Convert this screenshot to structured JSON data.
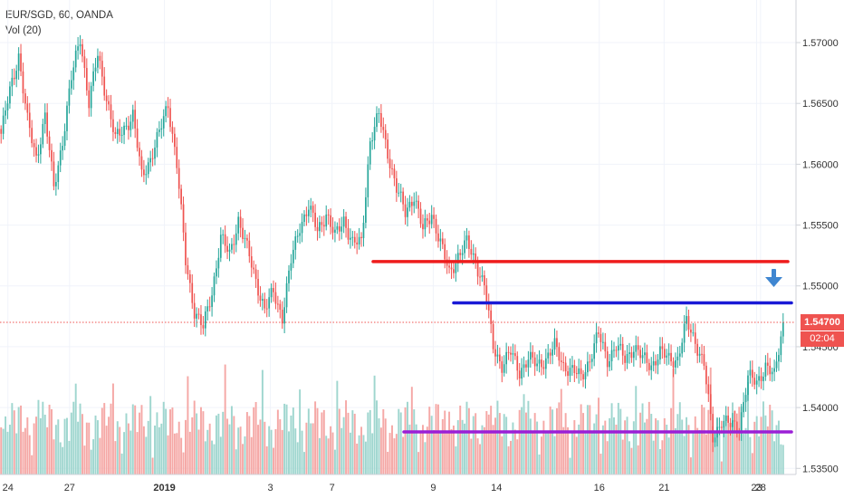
{
  "legend": {
    "symbol_line": "EUR/SGD, 60, OANDA",
    "volume_line": "Vol (20)"
  },
  "price_label": "1.54700",
  "countdown_label": "02:04",
  "colors": {
    "up": "#26a69a",
    "down": "#ef5350",
    "vol_up": "#9fd6cf",
    "vol_down": "#f5a8a6",
    "resistance_red": "#ee1c1c",
    "resistance_blue": "#1a1ad6",
    "support_purple": "#9b1fd6",
    "arrow": "#3f86d1",
    "grid": "#f0f3fa"
  },
  "chart_data": {
    "type": "candlestick",
    "symbol": "EUR/SGD",
    "interval": "60",
    "source": "OANDA",
    "y_axis": {
      "ticks": [
        "1.57000",
        "1.56500",
        "1.56000",
        "1.55500",
        "1.55000",
        "1.54500",
        "1.54000",
        "1.53500"
      ],
      "ylim": [
        1.5345,
        1.5735
      ]
    },
    "x_axis": {
      "ticks": [
        "24",
        "27",
        "2019",
        "3",
        "7",
        "9",
        "14",
        "16",
        "21",
        "23",
        "28"
      ]
    },
    "close_series": [
      1.5625,
      1.566,
      1.569,
      1.5635,
      1.5605,
      1.564,
      1.558,
      1.562,
      1.567,
      1.5705,
      1.565,
      1.569,
      1.5655,
      1.562,
      1.563,
      1.564,
      1.559,
      1.5605,
      1.5625,
      1.565,
      1.56,
      1.552,
      1.548,
      1.5465,
      1.5495,
      1.554,
      1.5525,
      1.5555,
      1.553,
      1.5505,
      1.548,
      1.5495,
      1.5475,
      1.552,
      1.555,
      1.5565,
      1.5545,
      1.556,
      1.554,
      1.5555,
      1.5535,
      1.5535,
      1.562,
      1.564,
      1.561,
      1.558,
      1.556,
      1.5575,
      1.5545,
      1.556,
      1.5535,
      1.551,
      1.5525,
      1.5535,
      1.552,
      1.55,
      1.545,
      1.5435,
      1.5445,
      1.543,
      1.544,
      1.5435,
      1.544,
      1.545,
      1.5435,
      1.543,
      1.5425,
      1.544,
      1.546,
      1.544,
      1.545,
      1.544,
      1.545,
      1.544,
      1.5435,
      1.5445,
      1.544,
      1.544,
      1.547,
      1.5455,
      1.5435,
      1.5375,
      1.539,
      1.5385,
      1.5385,
      1.5425,
      1.542,
      1.5435,
      1.5425,
      1.547
    ],
    "horizontal_levels": [
      {
        "name": "red-resistance",
        "price": 1.552,
        "color": "red"
      },
      {
        "name": "blue-resistance",
        "price": 1.5486,
        "color": "blue"
      },
      {
        "name": "purple-support",
        "price": 1.538,
        "color": "purple"
      }
    ],
    "current_price": 1.547,
    "annotations": [
      "down-arrow above blue resistance at right edge"
    ]
  }
}
